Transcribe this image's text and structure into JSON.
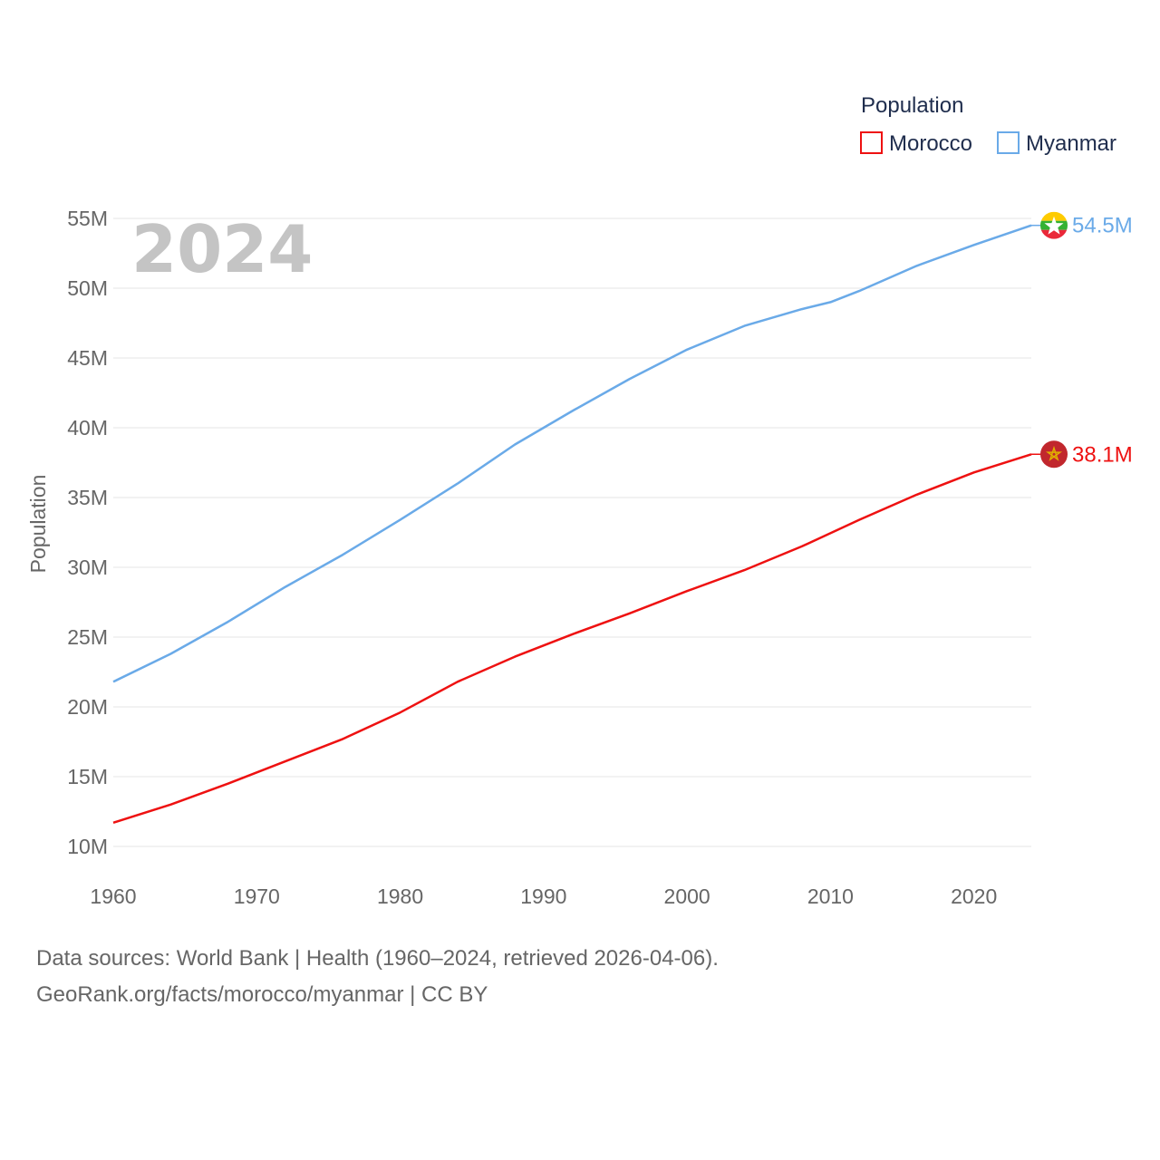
{
  "chart_data": {
    "type": "line",
    "title": "Population",
    "ylabel": "Population",
    "xlabel": "",
    "year_label": "2024",
    "legend_title": "Population",
    "legend_placement": "top-right",
    "xlim": [
      1960,
      2024
    ],
    "ylim": [
      10000000,
      55000000
    ],
    "x_ticks": [
      1960,
      1970,
      1980,
      1990,
      2000,
      2010,
      2020
    ],
    "x_tick_labels": [
      "1960",
      "1970",
      "1980",
      "1990",
      "2000",
      "2010",
      "2020"
    ],
    "y_ticks": [
      10000000,
      15000000,
      20000000,
      25000000,
      30000000,
      35000000,
      40000000,
      45000000,
      50000000,
      55000000
    ],
    "y_tick_labels": [
      "10M",
      "15M",
      "20M",
      "25M",
      "30M",
      "35M",
      "40M",
      "45M",
      "50M",
      "55M"
    ],
    "grid": true,
    "series": [
      {
        "name": "Morocco",
        "color": "#ee1111",
        "end_label": "38.1M",
        "flag_icon": "morocco-flag-icon",
        "x": [
          1960,
          1964,
          1968,
          1972,
          1976,
          1980,
          1984,
          1988,
          1992,
          1996,
          2000,
          2004,
          2008,
          2012,
          2016,
          2020,
          2024
        ],
        "y": [
          11700000,
          13000000,
          14500000,
          16100000,
          17700000,
          19600000,
          21800000,
          23600000,
          25200000,
          26700000,
          28300000,
          29800000,
          31500000,
          33400000,
          35200000,
          36800000,
          38100000
        ]
      },
      {
        "name": "Myanmar",
        "color": "#6aaae8",
        "end_label": "54.5M",
        "flag_icon": "myanmar-flag-icon",
        "x": [
          1960,
          1964,
          1968,
          1972,
          1976,
          1980,
          1984,
          1988,
          1992,
          1996,
          2000,
          2004,
          2008,
          2010,
          2012,
          2016,
          2020,
          2024
        ],
        "y": [
          21800000,
          23800000,
          26100000,
          28600000,
          30900000,
          33400000,
          36000000,
          38800000,
          41200000,
          43500000,
          45600000,
          47300000,
          48500000,
          49000000,
          49800000,
          51600000,
          53100000,
          54500000
        ]
      }
    ]
  },
  "footer": {
    "source_line": "Data sources: World Bank | Health (1960–2024, retrieved 2026-04-06).",
    "link_line": "GeoRank.org/facts/morocco/myanmar | CC BY"
  }
}
